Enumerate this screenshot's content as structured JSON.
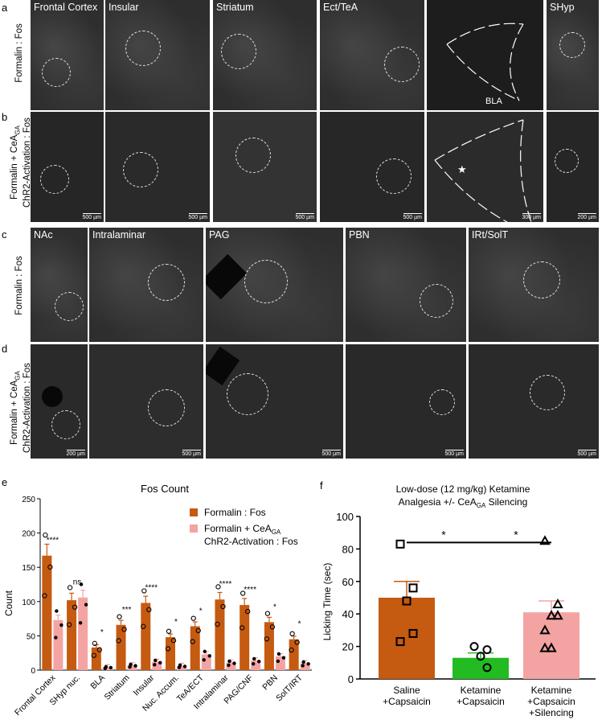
{
  "panels": {
    "a": "a",
    "b": "b",
    "c": "c",
    "d": "d",
    "e": "e",
    "f": "f"
  },
  "row_labels": {
    "a": "Formalin : Fos",
    "b_line1": "Formalin + CeA",
    "b_sub": "GA",
    "b_line2": "ChR2-Activation : Fos",
    "c": "Formalin : Fos",
    "d_line1": "Formalin + CeA",
    "d_sub": "GA",
    "d_line2": "ChR2-Activation : Fos"
  },
  "micrographs_top": {
    "names": [
      "Frontal Cortex",
      "Insular",
      "Striatum",
      "Ect/TeA",
      "",
      "SHyp"
    ],
    "bla_label": "BLA",
    "scales_b": [
      "500 µm",
      "500 µm",
      "500 µm",
      "500 µm",
      "300 µm",
      "200 µm"
    ]
  },
  "micrographs_bottom": {
    "names": [
      "NAc",
      "Intralaminar",
      "PAG",
      "PBN",
      "IRt/SolT"
    ],
    "scales_d": [
      "200 µm",
      "500 µm",
      "500 µm",
      "500 µm",
      "500 µm"
    ]
  },
  "chart_data": [
    {
      "type": "bar",
      "title": "Fos Count",
      "ylabel": "Count",
      "xlabel": "",
      "ylim": [
        0,
        250
      ],
      "yticks": [
        "0",
        "50",
        "100",
        "150",
        "200",
        "250"
      ],
      "categories": [
        "Frontal Cortex",
        "SHyp nuc.",
        "BLA",
        "Striatum",
        "Insular",
        "Nuc. Accum.",
        "TeA/ECT",
        "Intralaminar",
        "PAG/CNF",
        "PBN",
        "SolT/IRT"
      ],
      "series": [
        {
          "name": "Formalin : Fos",
          "values": [
            167,
            102,
            33,
            66,
            98,
            48,
            64,
            103,
            95,
            70,
            45
          ],
          "color": "#c55a11"
        },
        {
          "name": "Formalin + CeA GA ChR2-Activation : Fos",
          "values": [
            73,
            106,
            4,
            7,
            12,
            6,
            23,
            11,
            14,
            20,
            10
          ],
          "color": "#f4a3a3"
        }
      ],
      "significance": [
        "****",
        "ns",
        "*",
        "***",
        "****",
        "*",
        "*",
        "****",
        "****",
        "*",
        "*"
      ],
      "legend": {
        "entry1": "Formalin : Fos",
        "entry2_line1": "Formalin + CeA",
        "entry2_sub": "GA",
        "entry2_line2": "ChR2-Activation : Fos"
      }
    },
    {
      "type": "bar",
      "title_line1": "Low-dose (12 mg/kg) Ketamine",
      "title_line2a": "Analgesia +/- CeA",
      "title_sub": "GA",
      "title_line2b": " Silencing",
      "ylabel": "Licking Time (sec)",
      "ylim": [
        0,
        100
      ],
      "yticks": [
        "0",
        "20",
        "40",
        "60",
        "80",
        "100"
      ],
      "categories": [
        "Saline +Capsaicin",
        "Ketamine +Capsaicin",
        "Ketamine +Capsaicin +Silencing"
      ],
      "category_lines": [
        [
          "Saline",
          "+Capsaicin"
        ],
        [
          "Ketamine",
          "+Capsaicin"
        ],
        [
          "Ketamine",
          "+Capsaicin",
          "+Silencing"
        ]
      ],
      "values": [
        50,
        13,
        41
      ],
      "errors": [
        10,
        3,
        7
      ],
      "colors": [
        "#c55a11",
        "#22bb22",
        "#f4a3a3"
      ],
      "points": [
        [
          83,
          56,
          48,
          28,
          23
        ],
        [
          20,
          18,
          14,
          7
        ],
        [
          85,
          46,
          39,
          39,
          30,
          19,
          19
        ]
      ],
      "significance": [
        "*",
        "*"
      ]
    }
  ]
}
